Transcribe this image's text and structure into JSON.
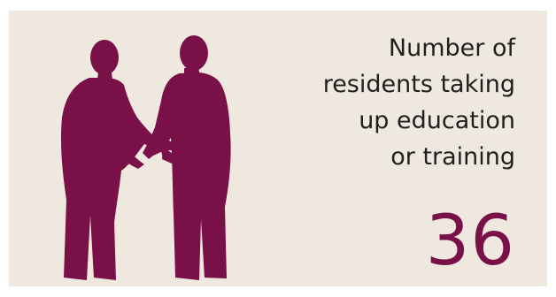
{
  "infographic": {
    "label": "Number of\nresidents taking\nup education\nor training",
    "value": "36"
  },
  "illustration": {
    "icon": "handshake-silhouette-icon"
  },
  "colors": {
    "background": "#efe8de",
    "accent": "#7a1048",
    "text": "#1f1f1f"
  }
}
